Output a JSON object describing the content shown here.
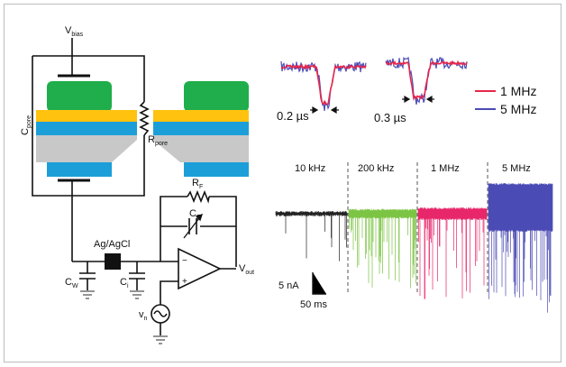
{
  "circuit": {
    "vbias": {
      "main": "V",
      "sub": "bias"
    },
    "cpore": {
      "main": "C",
      "sub": "pore"
    },
    "rpore": {
      "main": "R",
      "sub": "pore"
    },
    "rf": {
      "main": "R",
      "sub": "F"
    },
    "cf": {
      "main": "C",
      "sub": "F"
    },
    "electrode": "Ag/AgCl",
    "cw": {
      "main": "C",
      "sub": "W"
    },
    "ci": {
      "main": "C",
      "sub": "i"
    },
    "vout": {
      "main": "V",
      "sub": "out"
    },
    "vn": {
      "main": "v",
      "sub": "n"
    },
    "opamp_minus": "−",
    "opamp_plus": "+"
  },
  "pulses": {
    "left_width": "0.2 µs",
    "right_width": "0.3 µs",
    "legend": [
      {
        "label": "1 MHz",
        "color": "#e8264a"
      },
      {
        "label": "5 MHz",
        "color": "#4b4bb5"
      }
    ]
  },
  "traces": {
    "segments": [
      {
        "label": "10 kHz",
        "color": "#222222"
      },
      {
        "label": "200 kHz",
        "color": "#7cc443"
      },
      {
        "label": "1 MHz",
        "color": "#e8266a"
      },
      {
        "label": "5 MHz",
        "color": "#4b4bb5"
      }
    ],
    "scale_current": "5 nA",
    "scale_time": "50 ms"
  },
  "colors": {
    "green": "#1fae4b",
    "yellow": "#ffc20e",
    "blue": "#1c9fd8",
    "grey": "#c8c8c8"
  }
}
